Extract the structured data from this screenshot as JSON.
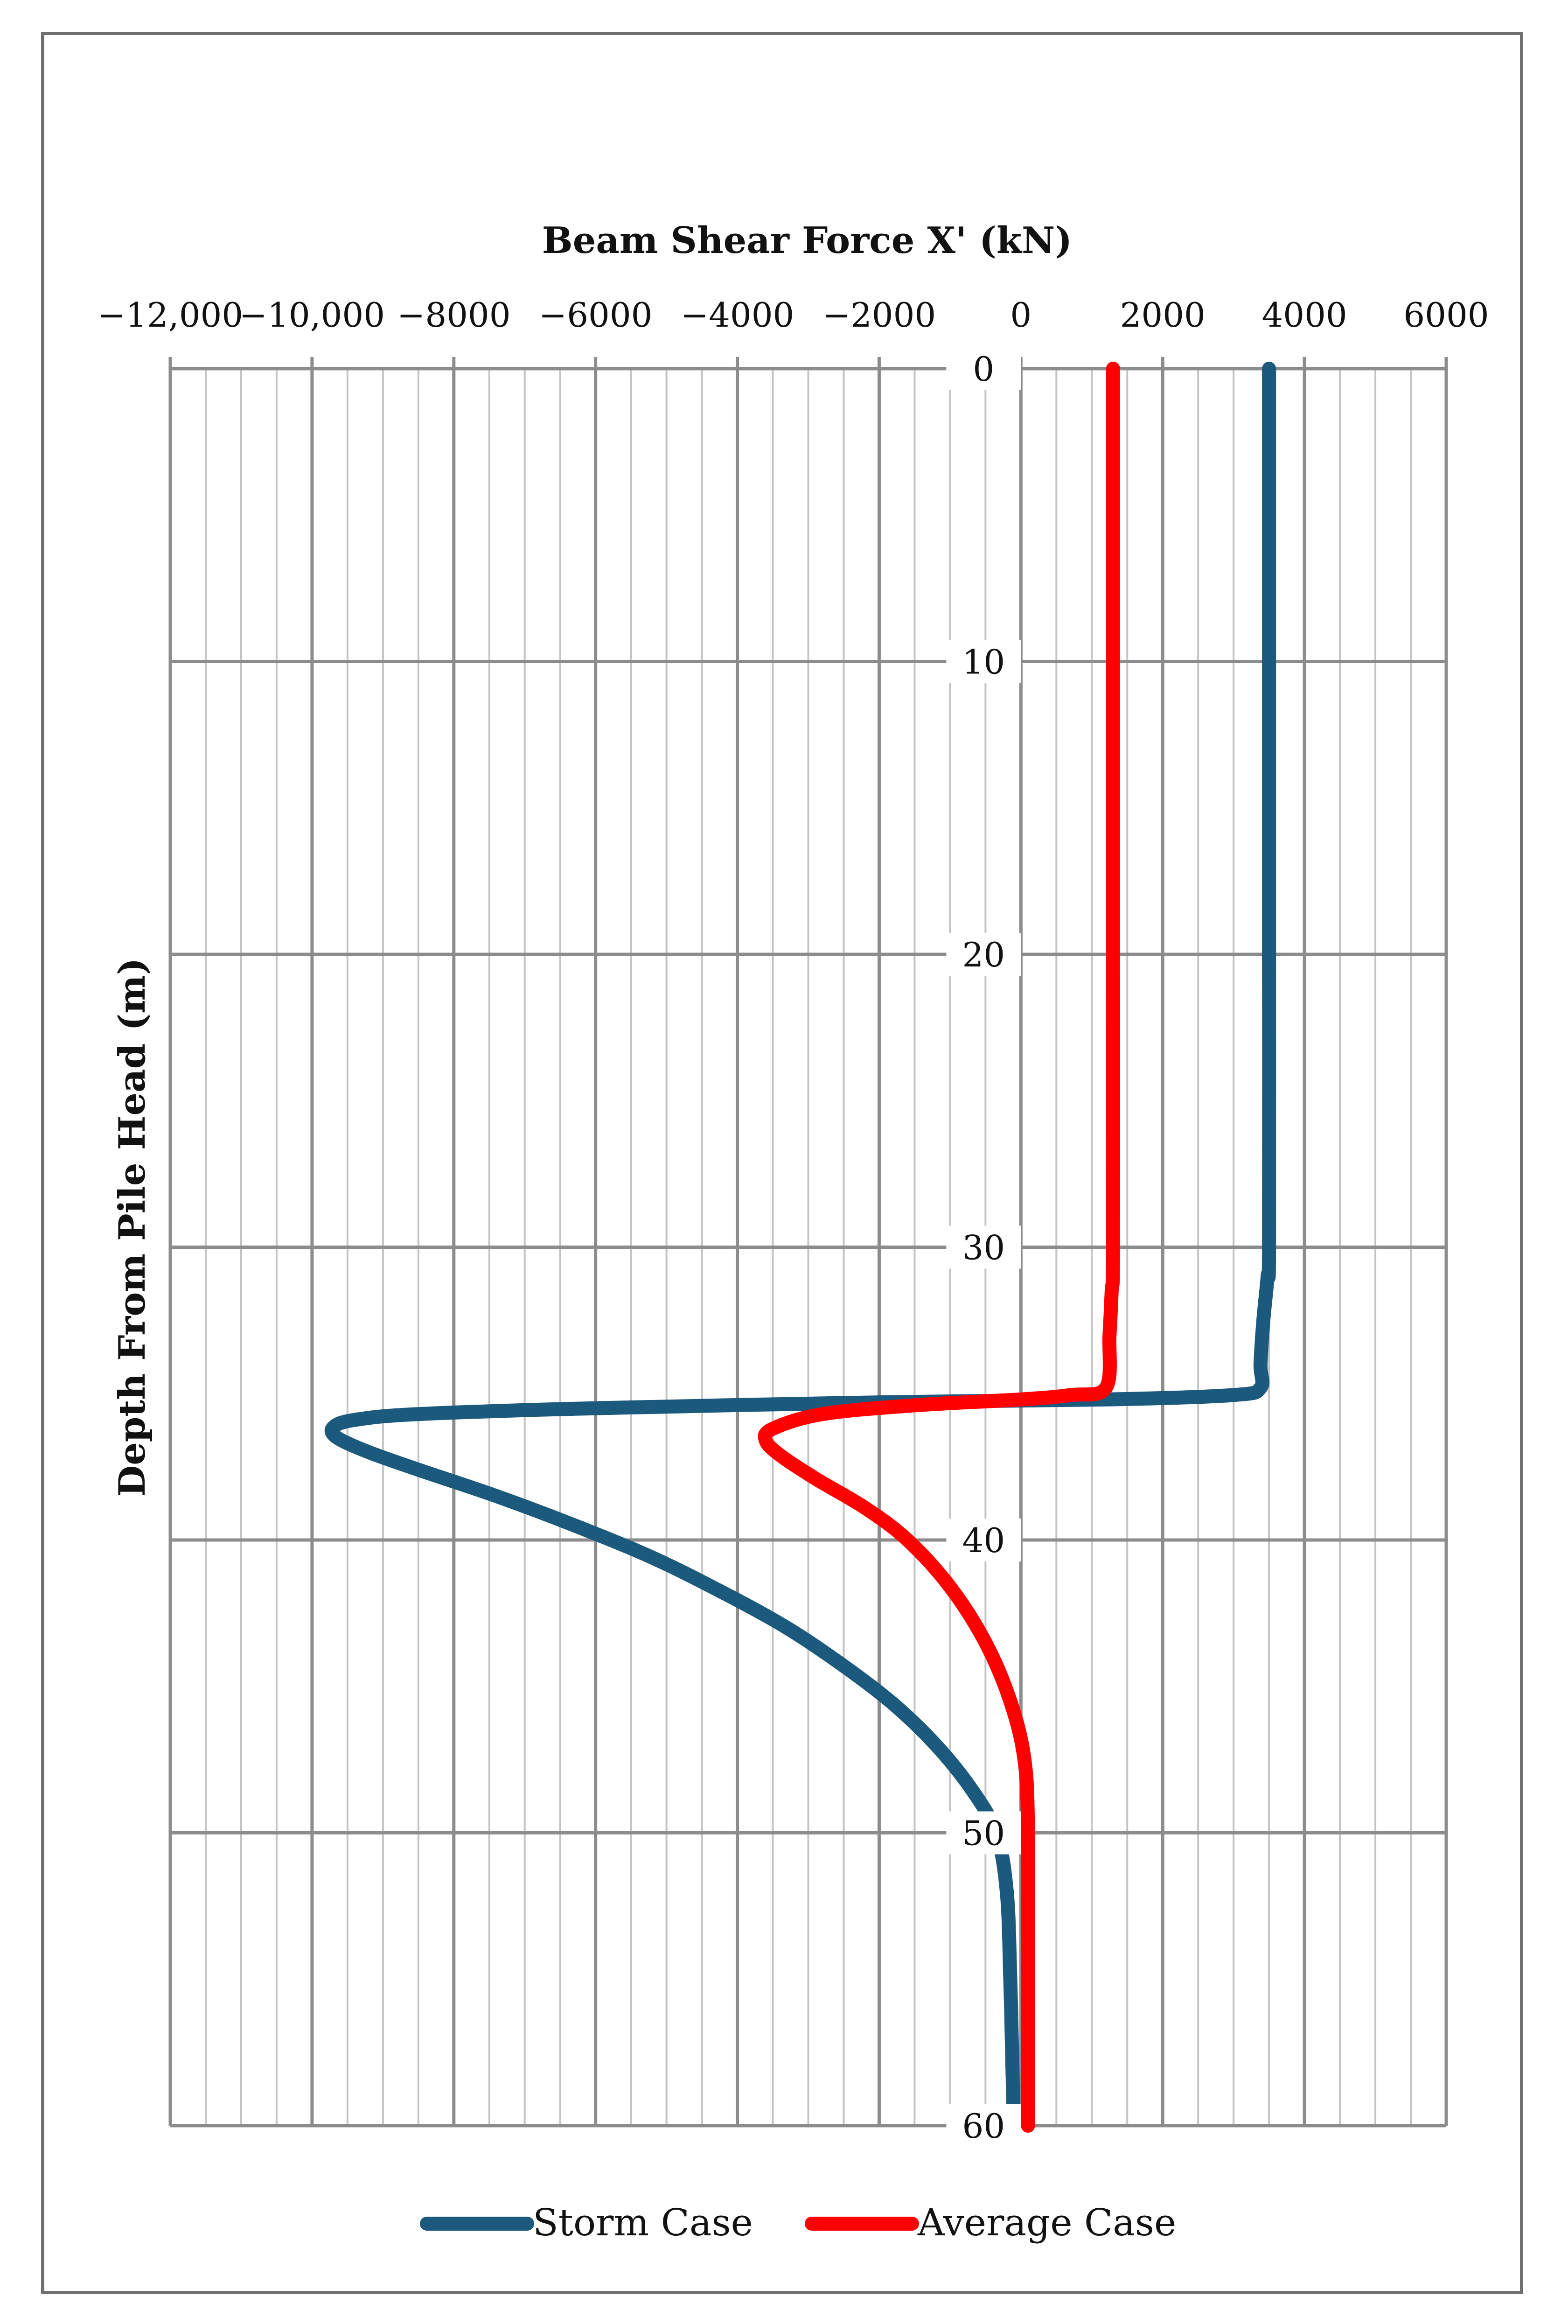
{
  "chart_data": {
    "type": "line",
    "title": "",
    "xlabel": "Beam Shear Force X' (kN)",
    "ylabel": "Depth From Pile Head (m)",
    "xlim": [
      -12000,
      6000
    ],
    "ylim": [
      0,
      60
    ],
    "y_inverted": true,
    "x_axis_position": "top",
    "x_ticks": [
      -12000,
      -10000,
      -8000,
      -6000,
      -4000,
      -2000,
      0,
      2000,
      4000,
      6000
    ],
    "x_tick_labels": [
      "−12,000",
      "−10,000",
      "−8000",
      "−6000",
      "−4000",
      "−2000",
      "0",
      "2000",
      "4000",
      "6000"
    ],
    "y_ticks": [
      0,
      10,
      20,
      30,
      40,
      50,
      60
    ],
    "y_tick_labels": [
      "0",
      "10",
      "20",
      "30",
      "40",
      "50",
      "60"
    ],
    "minor_x_step": 500,
    "grid": true,
    "legend_position": "bottom-center",
    "series": [
      {
        "name": "Storm Case",
        "color": "#1c5a7d",
        "points": [
          [
            3500,
            0
          ],
          [
            3500,
            10
          ],
          [
            3500,
            20
          ],
          [
            3500,
            30
          ],
          [
            3480,
            31
          ],
          [
            3420,
            32.5
          ],
          [
            3380,
            34
          ],
          [
            3380,
            34.8
          ],
          [
            3000,
            35.05
          ],
          [
            1200,
            35.2
          ],
          [
            -2000,
            35.3
          ],
          [
            -6000,
            35.5
          ],
          [
            -8500,
            35.7
          ],
          [
            -9400,
            35.9
          ],
          [
            -9700,
            36.15
          ],
          [
            -9650,
            36.5
          ],
          [
            -9200,
            37
          ],
          [
            -8500,
            37.6
          ],
          [
            -7400,
            38.5
          ],
          [
            -6300,
            39.5
          ],
          [
            -5200,
            40.6
          ],
          [
            -4200,
            41.8
          ],
          [
            -3300,
            43
          ],
          [
            -2500,
            44.3
          ],
          [
            -1800,
            45.6
          ],
          [
            -1200,
            47
          ],
          [
            -700,
            48.5
          ],
          [
            -350,
            50
          ],
          [
            -200,
            52
          ],
          [
            -150,
            55
          ],
          [
            -120,
            58
          ],
          [
            -100,
            60
          ]
        ]
      },
      {
        "name": "Average Case",
        "color": "#ff0000",
        "points": [
          [
            1300,
            0
          ],
          [
            1300,
            10
          ],
          [
            1300,
            20
          ],
          [
            1300,
            30
          ],
          [
            1280,
            31.5
          ],
          [
            1250,
            33
          ],
          [
            1200,
            34.8
          ],
          [
            700,
            35.05
          ],
          [
            0,
            35.2
          ],
          [
            -1500,
            35.4
          ],
          [
            -2800,
            35.7
          ],
          [
            -3500,
            36.2
          ],
          [
            -3600,
            36.6
          ],
          [
            -3400,
            37.1
          ],
          [
            -2900,
            37.9
          ],
          [
            -2200,
            38.9
          ],
          [
            -1600,
            40
          ],
          [
            -1000,
            41.6
          ],
          [
            -500,
            43.5
          ],
          [
            -150,
            45.5
          ],
          [
            50,
            47.5
          ],
          [
            100,
            50
          ],
          [
            100,
            55
          ],
          [
            100,
            60
          ]
        ]
      }
    ]
  }
}
